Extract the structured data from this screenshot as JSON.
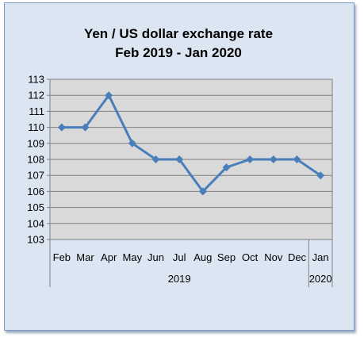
{
  "chart_data": {
    "type": "line",
    "title": "Yen / US dollar exchange rate",
    "subtitle": "Feb 2019  - Jan 2020",
    "categories": [
      "Feb",
      "Mar",
      "Apr",
      "May",
      "Jun",
      "Jul",
      "Aug",
      "Sep",
      "Oct",
      "Nov",
      "Dec",
      "Jan"
    ],
    "year_groups": [
      {
        "label": "2019",
        "span": 11
      },
      {
        "label": "2020",
        "span": 1
      }
    ],
    "series": [
      {
        "values": [
          110,
          110,
          112,
          109,
          108,
          108,
          106,
          107.5,
          108,
          108,
          108,
          107
        ]
      }
    ],
    "ylim": [
      103,
      113
    ],
    "yticks": [
      "103",
      "104",
      "105",
      "106",
      "107",
      "108",
      "109",
      "110",
      "111",
      "112",
      "113"
    ],
    "grid": true,
    "legend": "none",
    "colors": {
      "line": "#4a7ebb",
      "plot_bg": "#d9d9d9",
      "frame_bg": "#dce6f2"
    }
  }
}
